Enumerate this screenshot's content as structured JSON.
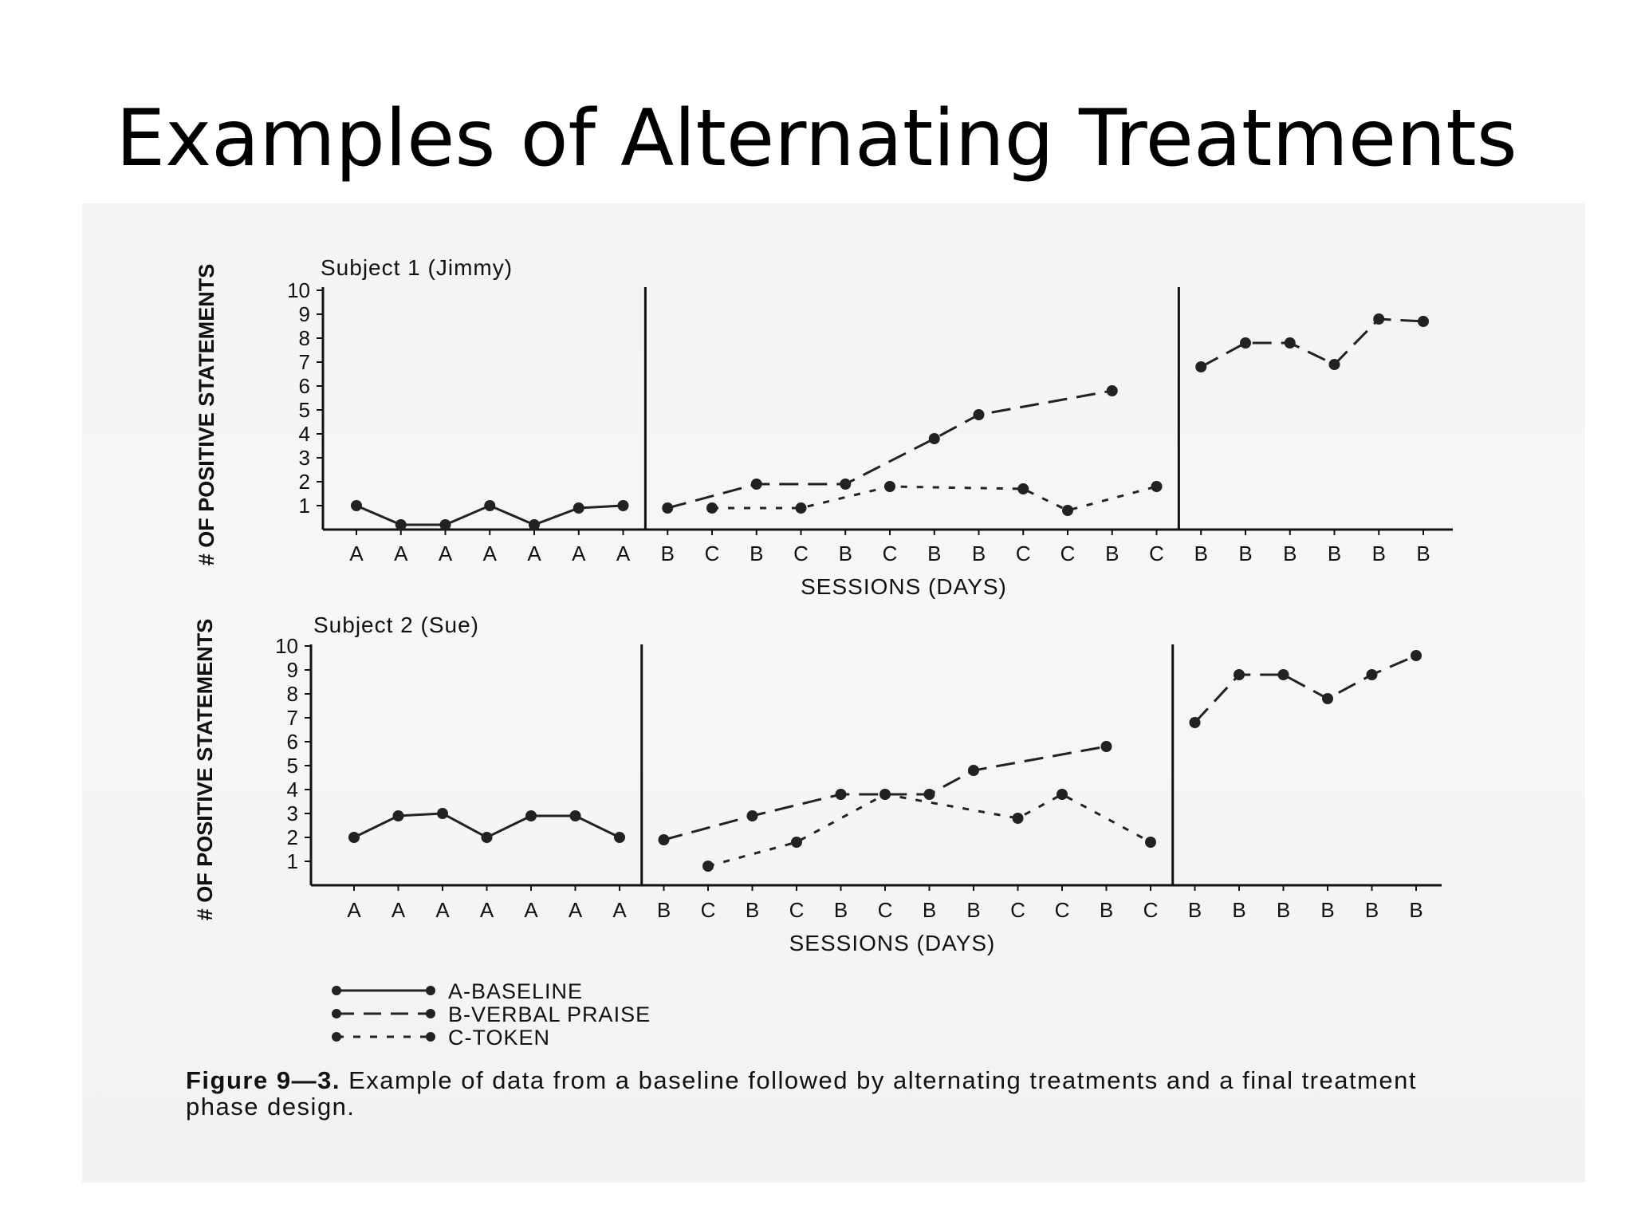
{
  "title": "Examples of Alternating Treatments",
  "legend": [
    {
      "key": "A",
      "label": "A-BASELINE",
      "style": "solid"
    },
    {
      "key": "B",
      "label": "B-VERBAL PRAISE",
      "style": "dashed"
    },
    {
      "key": "C",
      "label": "C-TOKEN",
      "style": "dotted"
    }
  ],
  "caption": {
    "figure": "Figure 9—3.",
    "text": "Example of data from a baseline followed by alternating treatments and a final treatment phase design."
  },
  "chart_data": [
    {
      "type": "line",
      "title": "Subject 1 (Jimmy)",
      "xlabel": "SESSIONS (DAYS)",
      "ylabel": "# OF POSITIVE STATEMENTS",
      "ylim": [
        0,
        10
      ],
      "yticks": [
        1,
        2,
        3,
        4,
        5,
        6,
        7,
        8,
        9,
        10
      ],
      "categories": [
        "A",
        "A",
        "A",
        "A",
        "A",
        "A",
        "A",
        "B",
        "C",
        "B",
        "C",
        "B",
        "C",
        "B",
        "B",
        "C",
        "C",
        "B",
        "C",
        "B",
        "B",
        "B",
        "B",
        "B",
        "B"
      ],
      "phase_lines_after": [
        7,
        19
      ],
      "series": [
        {
          "key": "A",
          "style": "solid",
          "x": [
            1,
            2,
            3,
            4,
            5,
            6,
            7
          ],
          "values": [
            1,
            0.2,
            0.2,
            1,
            0.2,
            0.9,
            1
          ]
        },
        {
          "key": "B",
          "style": "dashed",
          "x": [
            8,
            10,
            12,
            14,
            15,
            18
          ],
          "values": [
            0.9,
            1.9,
            1.9,
            3.8,
            4.8,
            5.8
          ]
        },
        {
          "key": "C",
          "style": "dotted",
          "x": [
            9,
            11,
            13,
            16,
            17,
            19
          ],
          "values": [
            0.9,
            0.9,
            1.8,
            1.7,
            0.8,
            1.8
          ]
        },
        {
          "key": "B",
          "style": "dashed",
          "x": [
            20,
            21,
            22,
            23,
            24,
            25
          ],
          "values": [
            6.8,
            7.8,
            7.8,
            6.9,
            8.8,
            8.7
          ]
        }
      ]
    },
    {
      "type": "line",
      "title": "Subject 2 (Sue)",
      "xlabel": "SESSIONS (DAYS)",
      "ylabel": "# OF POSITIVE STATEMENTS",
      "ylim": [
        0,
        10
      ],
      "yticks": [
        1,
        2,
        3,
        4,
        5,
        6,
        7,
        8,
        9,
        10
      ],
      "categories": [
        "A",
        "A",
        "A",
        "A",
        "A",
        "A",
        "A",
        "B",
        "C",
        "B",
        "C",
        "B",
        "C",
        "B",
        "B",
        "C",
        "C",
        "B",
        "C",
        "B",
        "B",
        "B",
        "B",
        "B",
        "B"
      ],
      "phase_lines_after": [
        7,
        19
      ],
      "series": [
        {
          "key": "A",
          "style": "solid",
          "x": [
            1,
            2,
            3,
            4,
            5,
            6,
            7
          ],
          "values": [
            2,
            2.9,
            3,
            2,
            2.9,
            2.9,
            2
          ]
        },
        {
          "key": "B",
          "style": "dashed",
          "x": [
            8,
            10,
            12,
            14,
            15,
            18
          ],
          "values": [
            1.9,
            2.9,
            3.8,
            3.8,
            4.8,
            5.8
          ]
        },
        {
          "key": "C",
          "style": "dotted",
          "x": [
            9,
            11,
            13,
            16,
            17,
            19
          ],
          "values": [
            0.8,
            1.8,
            3.8,
            2.8,
            3.8,
            1.8
          ]
        },
        {
          "key": "B",
          "style": "dashed",
          "x": [
            20,
            21,
            22,
            23,
            24,
            25
          ],
          "values": [
            6.8,
            8.8,
            8.8,
            7.8,
            8.8,
            9.6
          ]
        }
      ]
    }
  ]
}
